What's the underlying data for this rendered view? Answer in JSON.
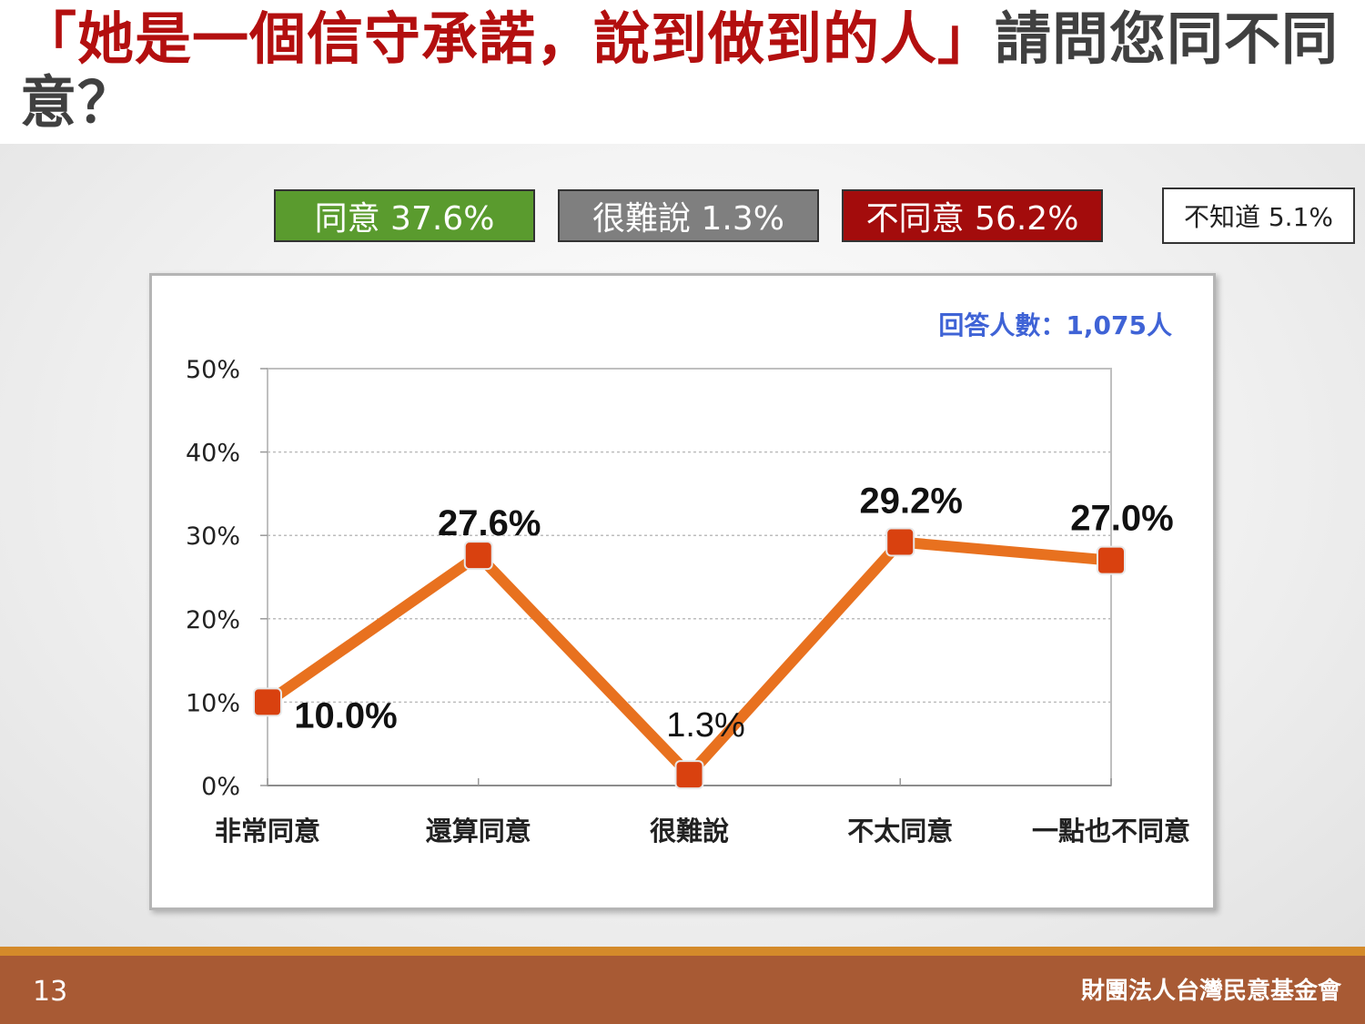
{
  "title": {
    "quote": "「她是一個信守承諾，說到做到的人」",
    "rest": "請問您同不同意？"
  },
  "summary": {
    "agree": "同意 37.6%",
    "hard": "很難說 1.3%",
    "disagree": "不同意 56.2%",
    "unknown": "不知道 5.1%"
  },
  "colors": {
    "agree": "#5a9b2e",
    "hard": "#7f7f7f",
    "disagree": "#a30c0c",
    "line": "#e8711f",
    "marker": "#d9410f",
    "respondents": "#3f63d6",
    "title_quote": "#b30f0f"
  },
  "respondents": "回答人數：1,075人",
  "chart_data": {
    "type": "line",
    "categories": [
      "非常同意",
      "還算同意",
      "很難說",
      "不太同意",
      "一點也不同意"
    ],
    "series": [
      {
        "values": [
          10.0,
          27.6,
          1.3,
          29.2,
          27.0
        ],
        "data_labels": [
          "10.0%",
          "27.6%",
          "1.3%",
          "29.2%",
          "27.0%"
        ]
      }
    ],
    "yticks": [
      "0%",
      "10%",
      "20%",
      "30%",
      "40%",
      "50%"
    ],
    "ylim": [
      0,
      50
    ],
    "grid": true,
    "title": "",
    "xlabel": "",
    "ylabel": ""
  },
  "footer": {
    "page": "13",
    "org": "財團法人台灣民意基金會"
  }
}
